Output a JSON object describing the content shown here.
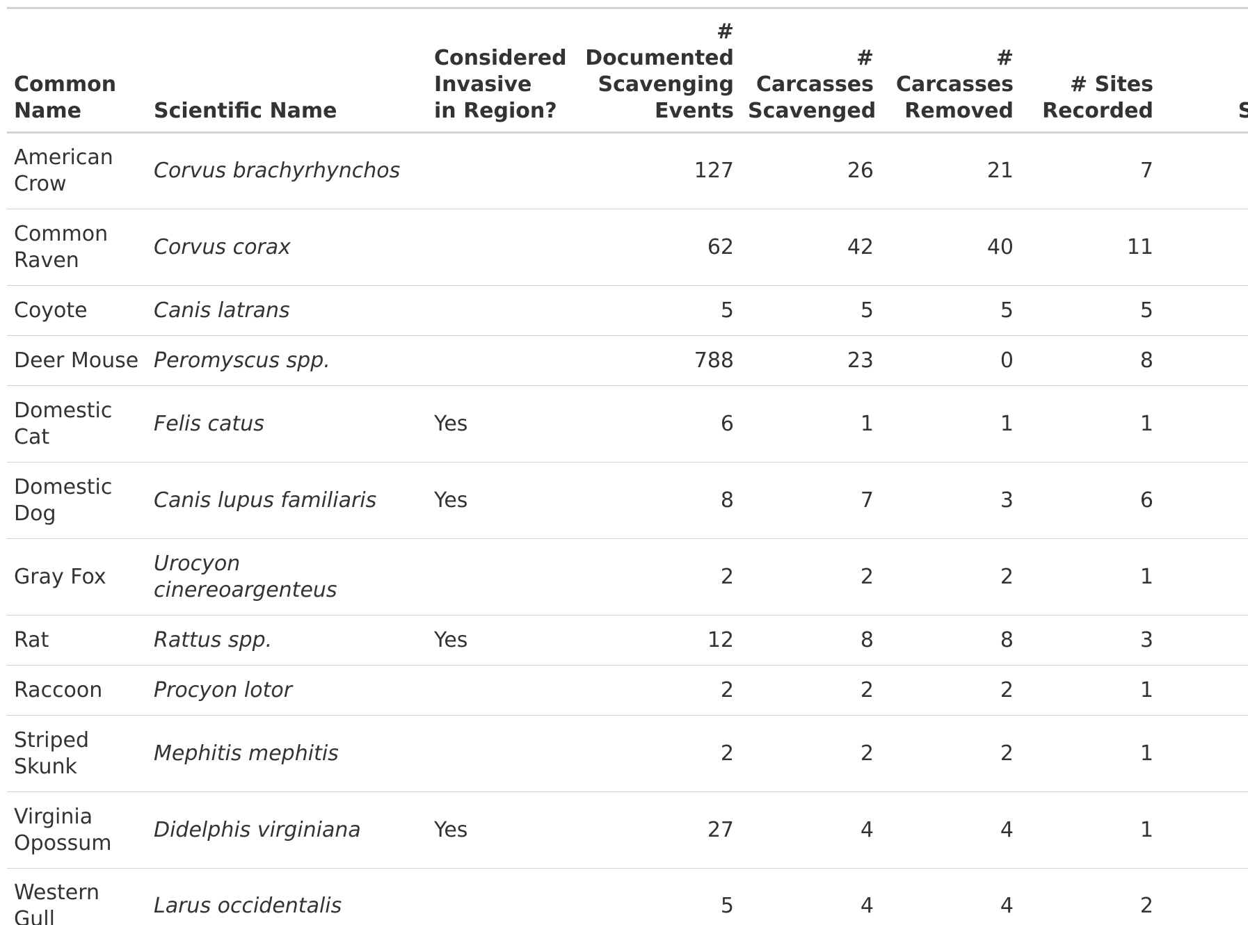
{
  "columns": {
    "common_name": "Common Name",
    "scientific_name": "Scientific Name",
    "invasive": "Considered Invasive in Region?",
    "documented_events": "# Documented Scavenging Events",
    "carcasses_scavenged": "# Carcasses Scavenged",
    "carcasses_removed": "# Carcasses Removed",
    "sites_recorded": "# Sites Recorded",
    "sum_maxn": "Su MaxI All S"
  },
  "rows": [
    {
      "common": "American Crow",
      "scientific": "Corvus brachyrhynchos",
      "invasive": "",
      "events": "127",
      "scavenged": "26",
      "removed": "21",
      "sites": "7"
    },
    {
      "common": "Common Raven",
      "scientific": "Corvus corax",
      "invasive": "",
      "events": "62",
      "scavenged": "42",
      "removed": "40",
      "sites": "11"
    },
    {
      "common": "Coyote",
      "scientific": "Canis latrans",
      "invasive": "",
      "events": "5",
      "scavenged": "5",
      "removed": "5",
      "sites": "5"
    },
    {
      "common": "Deer Mouse",
      "scientific": "Peromyscus spp.",
      "invasive": "",
      "events": "788",
      "scavenged": "23",
      "removed": "0",
      "sites": "8"
    },
    {
      "common": "Domestic Cat",
      "scientific": "Felis catus",
      "invasive": "Yes",
      "events": "6",
      "scavenged": "1",
      "removed": "1",
      "sites": "1"
    },
    {
      "common": "Domestic Dog",
      "scientific": "Canis lupus familiaris",
      "invasive": "Yes",
      "events": "8",
      "scavenged": "7",
      "removed": "3",
      "sites": "6"
    },
    {
      "common": "Gray Fox",
      "scientific": "Urocyon cinereoargenteus",
      "invasive": "",
      "events": "2",
      "scavenged": "2",
      "removed": "2",
      "sites": "1"
    },
    {
      "common": "Rat",
      "scientific": "Rattus spp.",
      "invasive": "Yes",
      "events": "12",
      "scavenged": "8",
      "removed": "8",
      "sites": "3"
    },
    {
      "common": "Raccoon",
      "scientific": "Procyon lotor",
      "invasive": "",
      "events": "2",
      "scavenged": "2",
      "removed": "2",
      "sites": "1"
    },
    {
      "common": "Striped Skunk",
      "scientific": "Mephitis mephitis",
      "invasive": "",
      "events": "2",
      "scavenged": "2",
      "removed": "2",
      "sites": "1"
    },
    {
      "common": "Virginia Opossum",
      "scientific": "Didelphis virginiana",
      "invasive": "Yes",
      "events": "27",
      "scavenged": "4",
      "removed": "4",
      "sites": "1"
    },
    {
      "common": "Western Gull",
      "scientific": "Larus occidentalis",
      "invasive": "",
      "events": "5",
      "scavenged": "4",
      "removed": "4",
      "sites": "2"
    }
  ]
}
